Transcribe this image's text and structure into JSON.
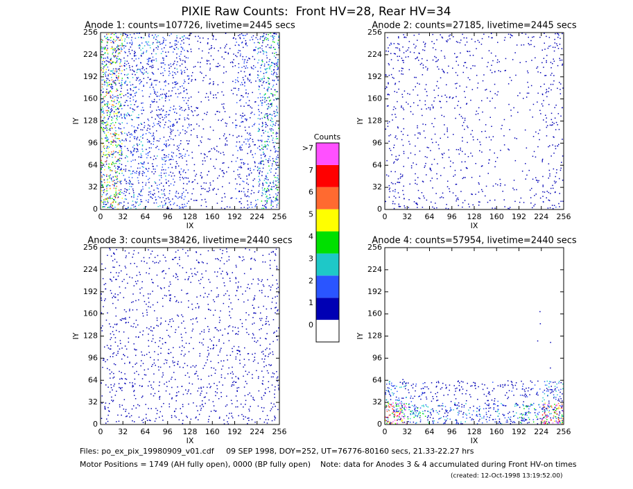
{
  "title": "PIXIE Raw Counts:  Front HV=28, Rear HV=34",
  "chart_data": [
    {
      "type": "heatmap",
      "title": "Anode 1: counts=107726, livetime=2445 secs",
      "xlabel": "IX",
      "ylabel": "IY",
      "xlim": [
        0,
        256
      ],
      "ylim": [
        0,
        256
      ],
      "xticks": [
        0,
        32,
        64,
        96,
        128,
        160,
        192,
        224,
        256
      ],
      "yticks": [
        0,
        32,
        64,
        96,
        128,
        160,
        192,
        224,
        256
      ],
      "density": [
        [
          3.2,
          1.6,
          1.4,
          1.3,
          0.6,
          0.5,
          1.1,
          2.2
        ],
        [
          3.0,
          1.5,
          1.3,
          1.2,
          0.6,
          0.5,
          1.0,
          2.0
        ],
        [
          3.0,
          1.5,
          1.3,
          1.2,
          0.5,
          0.5,
          1.0,
          2.0
        ],
        [
          3.0,
          1.4,
          1.2,
          1.1,
          0.5,
          0.4,
          1.0,
          1.9
        ],
        [
          3.0,
          1.4,
          1.2,
          1.1,
          0.5,
          0.4,
          0.9,
          1.9
        ],
        [
          3.0,
          1.5,
          1.3,
          1.2,
          0.5,
          0.5,
          1.0,
          2.0
        ],
        [
          3.1,
          1.6,
          1.4,
          1.3,
          0.6,
          0.5,
          1.1,
          2.1
        ],
        [
          3.2,
          1.7,
          1.5,
          1.4,
          0.6,
          0.6,
          1.2,
          2.2
        ]
      ]
    },
    {
      "type": "heatmap",
      "title": "Anode 2: counts=27185, livetime=2445 secs",
      "xlabel": "IX",
      "ylabel": "IY",
      "xlim": [
        0,
        256
      ],
      "ylim": [
        0,
        256
      ],
      "xticks": [
        0,
        32,
        64,
        96,
        128,
        160,
        192,
        224,
        256
      ],
      "yticks": [
        0,
        32,
        64,
        96,
        128,
        160,
        192,
        224,
        256
      ],
      "density": [
        [
          0.8,
          0.5,
          0.5,
          0.5,
          0.4,
          0.3,
          0.4,
          0.8
        ],
        [
          0.6,
          0.4,
          0.4,
          0.4,
          0.3,
          0.2,
          0.3,
          0.6
        ],
        [
          0.5,
          0.4,
          0.4,
          0.4,
          0.3,
          0.2,
          0.2,
          0.5
        ],
        [
          0.5,
          0.4,
          0.4,
          0.4,
          0.3,
          0.2,
          0.2,
          0.5
        ],
        [
          0.5,
          0.4,
          0.4,
          0.4,
          0.3,
          0.2,
          0.2,
          0.5
        ],
        [
          0.6,
          0.4,
          0.4,
          0.4,
          0.3,
          0.2,
          0.3,
          0.6
        ],
        [
          0.7,
          0.5,
          0.5,
          0.5,
          0.4,
          0.3,
          0.3,
          0.7
        ],
        [
          0.8,
          0.6,
          0.5,
          0.5,
          0.4,
          0.3,
          0.4,
          0.8
        ]
      ]
    },
    {
      "type": "heatmap",
      "title": "Anode 3: counts=38426, livetime=2440 secs",
      "xlabel": "IX",
      "ylabel": "IY",
      "xlim": [
        0,
        256
      ],
      "ylim": [
        0,
        256
      ],
      "xticks": [
        0,
        32,
        64,
        96,
        128,
        160,
        192,
        224,
        256
      ],
      "yticks": [
        0,
        32,
        64,
        96,
        128,
        160,
        192,
        224,
        256
      ],
      "density": [
        [
          0.7,
          0.6,
          0.6,
          0.6,
          0.6,
          0.6,
          0.6,
          0.7
        ],
        [
          0.7,
          0.6,
          0.6,
          0.6,
          0.6,
          0.6,
          0.6,
          0.7
        ],
        [
          0.7,
          0.6,
          0.6,
          0.6,
          0.6,
          0.6,
          0.6,
          0.7
        ],
        [
          0.7,
          0.6,
          0.6,
          0.6,
          0.5,
          0.6,
          0.6,
          0.7
        ],
        [
          0.6,
          0.6,
          0.6,
          0.6,
          0.5,
          0.6,
          0.6,
          0.6
        ],
        [
          0.6,
          0.5,
          0.5,
          0.5,
          0.5,
          0.5,
          0.5,
          0.6
        ],
        [
          0.6,
          0.5,
          0.5,
          0.5,
          0.5,
          0.5,
          0.5,
          0.6
        ],
        [
          0.5,
          0.5,
          0.5,
          0.5,
          0.4,
          0.5,
          0.5,
          0.5
        ]
      ]
    },
    {
      "type": "heatmap",
      "title": "Anode 4: counts=57954, livetime=2440 secs",
      "xlabel": "IX",
      "ylabel": "IY",
      "xlim": [
        0,
        256
      ],
      "ylim": [
        0,
        256
      ],
      "xticks": [
        0,
        32,
        64,
        96,
        128,
        160,
        192,
        224,
        256
      ],
      "yticks": [
        0,
        32,
        64,
        96,
        128,
        160,
        192,
        224,
        256
      ],
      "density": [
        [
          4.5,
          2.2,
          1.6,
          1.5,
          1.5,
          1.6,
          2.2,
          4.5
        ],
        [
          1.8,
          1.0,
          0.8,
          0.8,
          0.8,
          0.8,
          1.0,
          1.8
        ],
        [
          0.01,
          0,
          0,
          0,
          0,
          0,
          0,
          0.01
        ],
        [
          0,
          0,
          0,
          0,
          0,
          0,
          0.01,
          0.01
        ],
        [
          0,
          0,
          0,
          0,
          0,
          0,
          0.01,
          0
        ],
        [
          0,
          0,
          0,
          0,
          0,
          0,
          0.01,
          0
        ],
        [
          0,
          0,
          0,
          0,
          0,
          0,
          0,
          0
        ],
        [
          0,
          0,
          0,
          0,
          0,
          0,
          0,
          0
        ]
      ]
    }
  ],
  "colorbar": {
    "title": "Counts",
    "colors": [
      "#ffffff",
      "#0000b4",
      "#2a55ff",
      "#1ec8c8",
      "#00e000",
      "#ffff00",
      "#ff6a30",
      "#ff0000",
      "#ff50ff"
    ],
    "ticks": [
      0,
      1,
      2,
      3,
      4,
      5,
      6,
      7,
      {
        "value": 8,
        "label": ">7"
      }
    ]
  },
  "footer": {
    "files": "Files: po_ex_pix_19980909_v01.cdf     09 SEP 1998, DOY=252, UT=76776-80160 secs, 21.33-22.27 hrs",
    "motor": "Motor Positions = 1749 (AH fully open), 0000 (BP fully open)    Note: data for Anodes 3 & 4 accumulated during Front HV-on times",
    "created": "(created: 12-Oct-1998 13:19:52.00)"
  }
}
